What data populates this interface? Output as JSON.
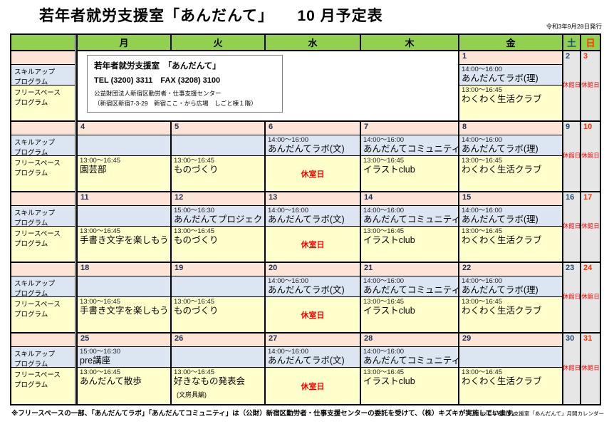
{
  "page": {
    "title": "若年者就労支援室「あんだんて」　　10 月予定表",
    "issued": "令和3年9月28日発行"
  },
  "colors": {
    "header_green": "#92d050",
    "date_row_peach": "#fce4d6",
    "skill_blue": "#dce6f2",
    "free_yellow": "#ffffcc",
    "weekend_gray": "#e7e6e6",
    "closed_red": "#ff0000",
    "saturday_blue": "#1f4e79",
    "sunday_red": "#ff3300",
    "weekday_date_color": "#1f3050"
  },
  "weekday_headers": [
    {
      "label": "月",
      "text_color": "#000000"
    },
    {
      "label": "火",
      "text_color": "#000000"
    },
    {
      "label": "水",
      "text_color": "#000000"
    },
    {
      "label": "木",
      "text_color": "#000000"
    },
    {
      "label": "金",
      "text_color": "#000000"
    },
    {
      "label": "土",
      "text_color": "#1f4e79"
    },
    {
      "label": "日",
      "text_color": "#ff3300"
    }
  ],
  "legend": {
    "skill_label": "スキルアップ\nプログラム",
    "free_label": "フリースペース\nプログラム"
  },
  "strings": {
    "closed_hall": "休館日",
    "closed_room": "休室日"
  },
  "info_box": {
    "line1": "若年者就労支援室　「あんだんて」",
    "line2": "TEL (3200) 3311　FAX (3208) 3100",
    "line3": "公益財団法人新宿区勤労者・仕事支援センター",
    "line4": "（新宿区新宿7-3-29　新宿ここ・から広場　しごと棟１階）"
  },
  "weeks": [
    {
      "info": true,
      "days": [
        null,
        null,
        null,
        null,
        {
          "date": "1",
          "skill": {
            "time": "14:00～16:00",
            "name": "あんだんてラボ(理)"
          },
          "free": {
            "time": "13:00～16:45",
            "name": "わくわく生活クラブ"
          }
        },
        {
          "date": "2",
          "closed": true
        },
        {
          "date": "3",
          "closed": true
        }
      ]
    },
    {
      "days": [
        {
          "date": "4",
          "free": {
            "time": "13:00～16:45",
            "name": "園芸部"
          }
        },
        {
          "date": "5",
          "free": {
            "time": "13:00～16:45",
            "name": "ものづくり"
          }
        },
        {
          "date": "6",
          "skill": {
            "time": "14:00～16:00",
            "name": "あんだんてラボ(文)"
          },
          "free_closed": true
        },
        {
          "date": "7",
          "skill": {
            "time": "14:00～16:00",
            "name": "あんだんてコミュニティ"
          },
          "free": {
            "time": "13:00～16:45",
            "name": "イラストclub"
          }
        },
        {
          "date": "8",
          "skill": {
            "time": "14:00～16:00",
            "name": "あんだんてラボ(理)"
          },
          "free": {
            "time": "13:00～16:45",
            "name": "わくわく生活クラブ"
          }
        },
        {
          "date": "9",
          "closed": true
        },
        {
          "date": "10",
          "closed": true
        }
      ]
    },
    {
      "days": [
        {
          "date": "11",
          "free": {
            "time": "13:00～16:45",
            "name": "手書き文字を楽しもう"
          }
        },
        {
          "date": "12",
          "skill": {
            "time": "15:00～16:30",
            "name": "あんだんてプロジェクト"
          },
          "free": {
            "time": "13:00～16:45",
            "name": "ものづくり"
          }
        },
        {
          "date": "13",
          "skill": {
            "time": "14:00～16:00",
            "name": "あんだんてラボ(文)"
          },
          "free_closed": true
        },
        {
          "date": "14",
          "skill": {
            "time": "14:00～16:00",
            "name": "あんだんてコミュニティ"
          },
          "free": {
            "time": "13:00～16:45",
            "name": "イラストclub"
          }
        },
        {
          "date": "15",
          "skill": {
            "time": "14:00～16:00",
            "name": "あんだんてラボ(理)"
          },
          "free": {
            "time": "13:00～16:45",
            "name": "わくわく生活クラブ"
          }
        },
        {
          "date": "16",
          "closed": true
        },
        {
          "date": "17",
          "closed": true
        }
      ]
    },
    {
      "days": [
        {
          "date": "18",
          "free": {
            "time": "13:00～16:45",
            "name": "手書き文字を楽しもう"
          }
        },
        {
          "date": "19",
          "free": {
            "time": "13:00～16:45",
            "name": "ものづくり"
          }
        },
        {
          "date": "20",
          "skill": {
            "time": "14:00～16:00",
            "name": "あんだんてラボ(文)"
          },
          "free_closed": true
        },
        {
          "date": "21",
          "skill": {
            "time": "14:00～16:00",
            "name": "あんだんてコミュニティ"
          },
          "free": {
            "time": "13:00～16:45",
            "name": "イラストclub"
          }
        },
        {
          "date": "22",
          "skill": {
            "time": "14:00～16:00",
            "name": "あんだんてラボ(理)"
          },
          "free": {
            "time": "13:00～16:45",
            "name": "わくわく生活クラブ"
          }
        },
        {
          "date": "23",
          "closed": true
        },
        {
          "date": "24",
          "closed": true
        }
      ]
    },
    {
      "days": [
        {
          "date": "25",
          "skill": {
            "time": "15:00～16:30",
            "name": "pre講座"
          },
          "free": {
            "time": "13:00～16:45",
            "name": "あんだんて散歩"
          }
        },
        {
          "date": "26",
          "free": {
            "time": "13:00～16:45",
            "name": "好きなもの発表会",
            "note": "(文房具編)"
          }
        },
        {
          "date": "27",
          "skill": {
            "time": "14:00～16:00",
            "name": "あんだんてラボ(文)"
          },
          "free_closed": true
        },
        {
          "date": "28",
          "skill": {
            "time": "14:00～16:00",
            "name": "あんだんてコミュニティ"
          },
          "free": {
            "time": "13:00～16:45",
            "name": "イラストclub"
          }
        },
        {
          "date": "29",
          "free": {
            "time": "13:00～16:45",
            "name": "わくわく生活クラブ"
          }
        },
        {
          "date": "30",
          "closed": true
        },
        {
          "date": "31",
          "closed": true
        }
      ]
    }
  ],
  "footer": {
    "note": "※フリースペースの一部、「あんだんてラボ」「あんだんてコミュニティ」は（公財）新宿区勤労者・仕事支援センターの委託を受けて、（株）キズキが実施しています。",
    "credit": "R3若年者就労支援室「あんだんて」月間カレンダー"
  }
}
